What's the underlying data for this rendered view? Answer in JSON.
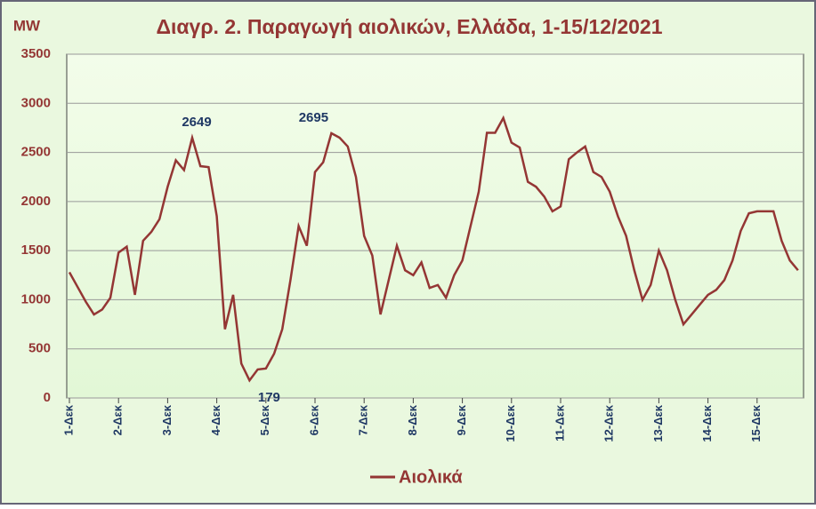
{
  "chart_data": {
    "type": "line",
    "title": "Διαγρ. 2. Παραγωγή αιολικών, Ελλάδα, 1-15/12/2021",
    "y_label": "MW",
    "categories": [
      "1-Δεκ",
      null,
      null,
      null,
      null,
      null,
      "2-Δεκ",
      null,
      null,
      null,
      null,
      null,
      "3-Δεκ",
      null,
      null,
      null,
      null,
      null,
      "4-Δεκ",
      null,
      null,
      null,
      null,
      null,
      "5-Δεκ",
      null,
      null,
      null,
      null,
      null,
      "6-Δεκ",
      null,
      null,
      null,
      null,
      null,
      "7-Δεκ",
      null,
      null,
      null,
      null,
      null,
      "8-Δεκ",
      null,
      null,
      null,
      null,
      null,
      "9-Δεκ",
      null,
      null,
      null,
      null,
      null,
      "10-Δεκ",
      null,
      null,
      null,
      null,
      null,
      "11-Δεκ",
      null,
      null,
      null,
      null,
      null,
      "12-Δεκ",
      null,
      null,
      null,
      null,
      null,
      "13-Δεκ",
      null,
      null,
      null,
      null,
      null,
      "14-Δεκ",
      null,
      null,
      null,
      null,
      null,
      "15-Δεκ",
      null,
      null,
      null,
      null,
      null
    ],
    "series": [
      {
        "name": "Αιολικά",
        "color": "#943634",
        "values": [
          1280,
          1130,
          980,
          850,
          900,
          1020,
          1480,
          1540,
          1050,
          1600,
          1690,
          1820,
          2150,
          2420,
          2320,
          2649,
          2360,
          2350,
          1850,
          700,
          1050,
          350,
          179,
          290,
          300,
          450,
          700,
          1200,
          1750,
          1550,
          2300,
          2400,
          2695,
          2650,
          2560,
          2250,
          1650,
          1450,
          850,
          1200,
          1550,
          1300,
          1250,
          1380,
          1120,
          1150,
          1020,
          1250,
          1400,
          1750,
          2100,
          2700,
          2700,
          2850,
          2600,
          2550,
          2200,
          2150,
          2050,
          1900,
          1950,
          2430,
          2500,
          2560,
          2300,
          2250,
          2100,
          1850,
          1650,
          1300,
          1000,
          1150,
          1500,
          1300,
          1000,
          750,
          850,
          950,
          1050,
          1100,
          1200,
          1400,
          1700,
          1880,
          1900,
          1900,
          1900,
          1600,
          1400,
          1300
        ]
      }
    ],
    "annotations": [
      "2649",
      "2695",
      "179"
    ],
    "ylim": [
      0,
      3500
    ],
    "yticks": [
      0,
      500,
      1000,
      1500,
      2000,
      2500,
      3000,
      3500
    ],
    "grid": true,
    "legend": "bottom"
  }
}
